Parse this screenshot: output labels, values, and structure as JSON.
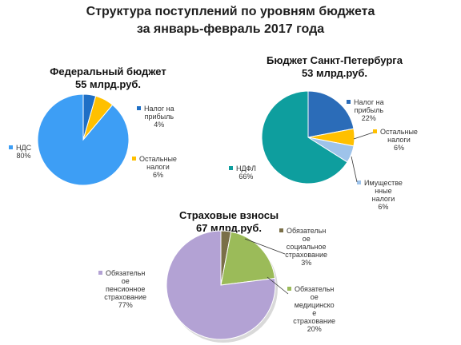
{
  "title_line1": "Структура поступлений по уровням бюджета",
  "title_line2": "за январь-февраль 2017 года",
  "chart_data": [
    {
      "type": "pie",
      "title": "Федеральный бюджет",
      "subtitle": "55 млрд.руб.",
      "slices": [
        {
          "label": [
            "Налог на",
            "прибыль"
          ],
          "value": 4,
          "value_label": "4%",
          "color": "#1f6fc5"
        },
        {
          "label": [
            "Остальные",
            "налоги"
          ],
          "value": 6,
          "value_label": "6%",
          "color": "#ffc000"
        },
        {
          "label": [
            "НДС"
          ],
          "value": 80,
          "value_label": "80%",
          "color": "#3d9ef5"
        }
      ]
    },
    {
      "type": "pie",
      "title": "Бюджет  Санкт-Петербурга",
      "subtitle": "53 млрд.руб.",
      "slices": [
        {
          "label": [
            "Налог на",
            "прибыль"
          ],
          "value": 22,
          "value_label": "22%",
          "color": "#2b6cb8"
        },
        {
          "label": [
            "Остальные",
            "налоги"
          ],
          "value": 6,
          "value_label": "6%",
          "color": "#ffc000"
        },
        {
          "label": [
            "Имуществе",
            "нные",
            "налоги"
          ],
          "value": 6,
          "value_label": "6%",
          "color": "#9ec3ea"
        },
        {
          "label": [
            "НДФЛ"
          ],
          "value": 66,
          "value_label": "66%",
          "color": "#0e9e9e"
        }
      ]
    },
    {
      "type": "pie",
      "title": "Страховые взносы",
      "subtitle": "67 млрд.руб.",
      "slices": [
        {
          "label": [
            "Обязательн",
            "ое",
            "социальное",
            "страхование"
          ],
          "value": 3,
          "value_label": "3%",
          "color": "#7a6f48"
        },
        {
          "label": [
            "Обязательн",
            "ое",
            "медицинско",
            "е",
            "страхование"
          ],
          "value": 20,
          "value_label": "20%",
          "color": "#9bbb59"
        },
        {
          "label": [
            "Обязательн",
            "ое",
            "пенсионное",
            "страхование"
          ],
          "value": 77,
          "value_label": "77%",
          "color": "#b3a2d4"
        }
      ]
    }
  ]
}
